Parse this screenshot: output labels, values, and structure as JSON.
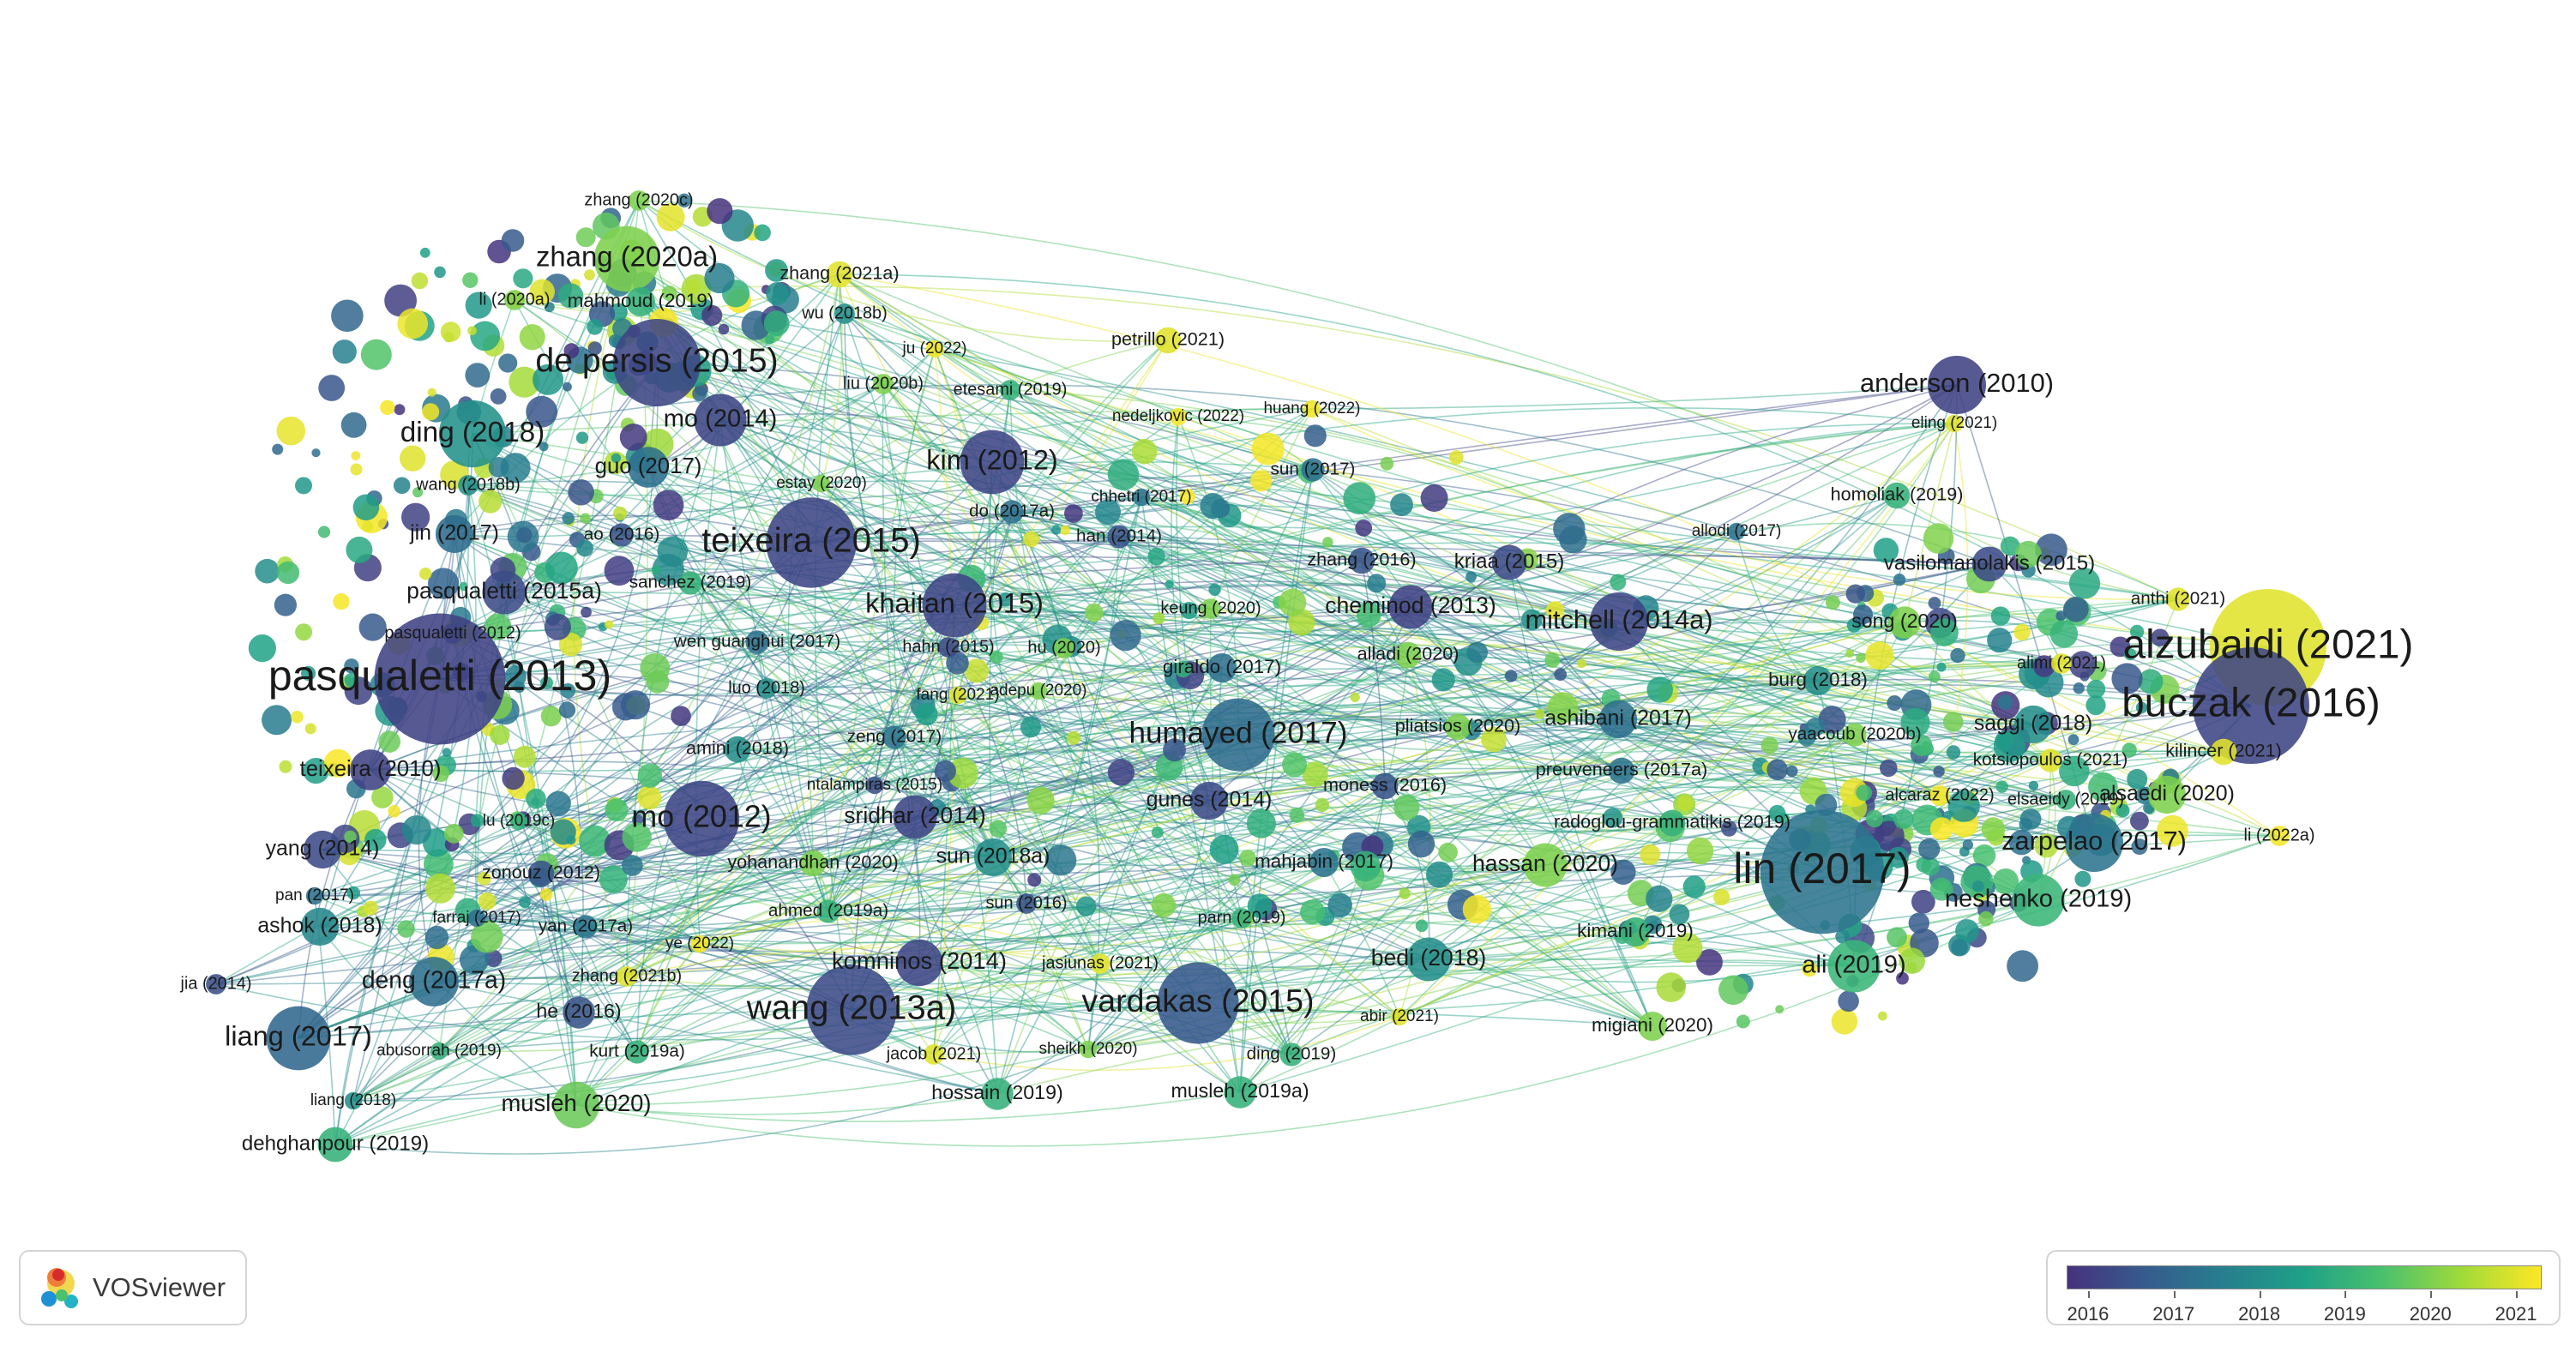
{
  "app": {
    "name": "VOSviewer"
  },
  "legend": {
    "ticks": [
      "2016",
      "2017",
      "2018",
      "2019",
      "2020",
      "2021"
    ],
    "start_year": 2015.75,
    "end_year": 2021.3
  },
  "chart_data": {
    "type": "network",
    "color_scale": [
      "#46327e",
      "#365c8d",
      "#277f8e",
      "#1fa187",
      "#4ac16d",
      "#a0da39",
      "#fde725"
    ],
    "nodes": [
      {
        "label": "pasqualetti (2013)",
        "year": 2016.1,
        "weight": 90
      },
      {
        "label": "lin (2017)",
        "year": 2017.3,
        "weight": 85
      },
      {
        "label": "alzubaidi (2021)",
        "year": 2021.0,
        "weight": 80
      },
      {
        "label": "buczak (2016)",
        "year": 2016.2,
        "weight": 80
      },
      {
        "label": "de persis (2015)",
        "year": 2016.2,
        "weight": 60
      },
      {
        "label": "teixeira (2015)",
        "year": 2016.2,
        "weight": 62
      },
      {
        "label": "wang (2013a)",
        "year": 2016.3,
        "weight": 62
      },
      {
        "label": "vardakas (2015)",
        "year": 2016.6,
        "weight": 56
      },
      {
        "label": "mo (2012)",
        "year": 2016.2,
        "weight": 52
      },
      {
        "label": "humayed (2017)",
        "year": 2017.1,
        "weight": 50
      },
      {
        "label": "zhang (2020a)",
        "year": 2020.0,
        "weight": 45
      },
      {
        "label": "ding (2018)",
        "year": 2018.1,
        "weight": 46
      },
      {
        "label": "kim (2012)",
        "year": 2016.2,
        "weight": 44
      },
      {
        "label": "khaitan (2015)",
        "year": 2016.2,
        "weight": 44
      },
      {
        "label": "liang (2017)",
        "year": 2017.0,
        "weight": 44
      },
      {
        "label": "anderson (2010)",
        "year": 2016.1,
        "weight": 40
      },
      {
        "label": "mitchell (2014a)",
        "year": 2016.2,
        "weight": 40
      },
      {
        "label": "zarpelao (2017)",
        "year": 2017.3,
        "weight": 40
      },
      {
        "label": "mo (2014)",
        "year": 2016.2,
        "weight": 36
      },
      {
        "label": "neshenko (2019)",
        "year": 2019.1,
        "weight": 36
      },
      {
        "label": "ali (2019)",
        "year": 2019.1,
        "weight": 36
      },
      {
        "label": "deng (2017a)",
        "year": 2017.2,
        "weight": 34
      },
      {
        "label": "musleh (2020)",
        "year": 2019.8,
        "weight": 32
      },
      {
        "label": "komninos (2014)",
        "year": 2016.2,
        "weight": 32
      },
      {
        "label": "bedi (2018)",
        "year": 2018.0,
        "weight": 30
      },
      {
        "label": "hassan (2020)",
        "year": 2020.0,
        "weight": 30
      },
      {
        "label": "pasqualetti (2015a)",
        "year": 2016.3,
        "weight": 30
      },
      {
        "label": "cheminod (2013)",
        "year": 2016.1,
        "weight": 30
      },
      {
        "label": "sridhar (2014)",
        "year": 2016.2,
        "weight": 30
      },
      {
        "label": "guo (2017)",
        "year": 2017.2,
        "weight": 28
      },
      {
        "label": "teixeira (2010)",
        "year": 2016.1,
        "weight": 28
      },
      {
        "label": "yang (2014)",
        "year": 2016.3,
        "weight": 26
      },
      {
        "label": "jin (2017)",
        "year": 2017.1,
        "weight": 26
      },
      {
        "label": "sun (2018a)",
        "year": 2018.0,
        "weight": 26
      },
      {
        "label": "gunes (2014)",
        "year": 2016.3,
        "weight": 26
      },
      {
        "label": "saggi (2018)",
        "year": 2018.0,
        "weight": 26
      },
      {
        "label": "ashok (2018)",
        "year": 2017.8,
        "weight": 26
      },
      {
        "label": "ashibani (2017)",
        "year": 2017.2,
        "weight": 26
      },
      {
        "label": "alsaedi (2020)",
        "year": 2020.0,
        "weight": 26
      },
      {
        "label": "kriaa (2015)",
        "year": 2016.3,
        "weight": 24
      },
      {
        "label": "vasilomanolakis (2015)",
        "year": 2016.3,
        "weight": 24
      },
      {
        "label": "dehghanpour (2019)",
        "year": 2019.0,
        "weight": 24
      },
      {
        "label": "song (2020)",
        "year": 2020.0,
        "weight": 22
      },
      {
        "label": "hossain (2019)",
        "year": 2019.0,
        "weight": 22
      },
      {
        "label": "musleh (2019a)",
        "year": 2019.0,
        "weight": 22
      },
      {
        "label": "he (2016)",
        "year": 2016.5,
        "weight": 22
      },
      {
        "label": "migiani (2020)",
        "year": 2020.0,
        "weight": 20
      },
      {
        "label": "kimani (2019)",
        "year": 2019.0,
        "weight": 20
      },
      {
        "label": "burg (2018)",
        "year": 2018.0,
        "weight": 20
      },
      {
        "label": "giraldo (2017)",
        "year": 2017.2,
        "weight": 20
      },
      {
        "label": "mahjabin (2017)",
        "year": 2017.3,
        "weight": 20
      },
      {
        "label": "mahmoud (2019)",
        "year": 2019.0,
        "weight": 20
      },
      {
        "label": "homoliak (2019)",
        "year": 2019.0,
        "weight": 18
      },
      {
        "label": "zhang (2021a)",
        "year": 2021.0,
        "weight": 18
      },
      {
        "label": "petrillo (2021)",
        "year": 2021.0,
        "weight": 18
      },
      {
        "label": "zhang (2016)",
        "year": 2016.5,
        "weight": 18
      },
      {
        "label": "moness (2016)",
        "year": 2016.5,
        "weight": 18
      },
      {
        "label": "pliatsios (2020)",
        "year": 2020.0,
        "weight": 18
      },
      {
        "label": "alladi (2020)",
        "year": 2020.0,
        "weight": 18
      },
      {
        "label": "amini (2018)",
        "year": 2018.0,
        "weight": 18
      },
      {
        "label": "zonouz (2012)",
        "year": 2016.5,
        "weight": 18
      },
      {
        "label": "kilincer (2021)",
        "year": 2021.0,
        "weight": 18
      },
      {
        "label": "preuveneers (2017a)",
        "year": 2017.3,
        "weight": 18
      },
      {
        "label": "radoglou-grammatikis (2019)",
        "year": 2019.0,
        "weight": 18
      },
      {
        "label": "yohanandhan (2020)",
        "year": 2020.0,
        "weight": 18
      },
      {
        "label": "ahmed (2019a)",
        "year": 2019.0,
        "weight": 16
      },
      {
        "label": "yan (2017a)",
        "year": 2017.3,
        "weight": 16
      },
      {
        "label": "sanchez (2019)",
        "year": 2019.0,
        "weight": 16
      },
      {
        "label": "wen guanghui (2017)",
        "year": 2017.2,
        "weight": 16
      },
      {
        "label": "ao (2016)",
        "year": 2016.5,
        "weight": 16
      },
      {
        "label": "zeng (2017)",
        "year": 2017.3,
        "weight": 16
      },
      {
        "label": "kotsiopoulos (2021)",
        "year": 2021.0,
        "weight": 16
      },
      {
        "label": "yaacoub (2020b)",
        "year": 2020.0,
        "weight": 16
      },
      {
        "label": "anthi (2021)",
        "year": 2021.0,
        "weight": 16
      },
      {
        "label": "han (2014)",
        "year": 2016.5,
        "weight": 16
      },
      {
        "label": "sun (2017)",
        "year": 2017.2,
        "weight": 16
      },
      {
        "label": "do (2017a)",
        "year": 2017.2,
        "weight": 16
      },
      {
        "label": "ding (2019)",
        "year": 2019.0,
        "weight": 16
      },
      {
        "label": "kurt (2019a)",
        "year": 2019.0,
        "weight": 16
      },
      {
        "label": "zhang (2020c)",
        "year": 2020.0,
        "weight": 14
      },
      {
        "label": "li (2020a)",
        "year": 2020.0,
        "weight": 14
      },
      {
        "label": "wu (2018b)",
        "year": 2018.0,
        "weight": 14
      },
      {
        "label": "liu (2020b)",
        "year": 2020.0,
        "weight": 14
      },
      {
        "label": "etesami (2019)",
        "year": 2019.0,
        "weight": 14
      },
      {
        "label": "ju (2022)",
        "year": 2021.2,
        "weight": 12
      },
      {
        "label": "nedeljkovic (2022)",
        "year": 2021.2,
        "weight": 12
      },
      {
        "label": "huang (2022)",
        "year": 2021.2,
        "weight": 12
      },
      {
        "label": "eling (2021)",
        "year": 2021.0,
        "weight": 12
      },
      {
        "label": "wang (2018b)",
        "year": 2018.0,
        "weight": 14
      },
      {
        "label": "estay (2020)",
        "year": 2020.0,
        "weight": 12
      },
      {
        "label": "chhetri (2017)",
        "year": 2017.3,
        "weight": 12
      },
      {
        "label": "allodi (2017)",
        "year": 2017.3,
        "weight": 12
      },
      {
        "label": "pasqualetti (2012)",
        "year": 2016.2,
        "weight": 14
      },
      {
        "label": "keung (2020)",
        "year": 2020.0,
        "weight": 14
      },
      {
        "label": "hahn (2015)",
        "year": 2016.3,
        "weight": 14
      },
      {
        "label": "hu (2020)",
        "year": 2020.0,
        "weight": 14
      },
      {
        "label": "luo (2018)",
        "year": 2018.0,
        "weight": 14
      },
      {
        "label": "fang (2021)",
        "year": 2021.0,
        "weight": 12
      },
      {
        "label": "adepu (2020)",
        "year": 2020.0,
        "weight": 12
      },
      {
        "label": "alimi (2021)",
        "year": 2021.0,
        "weight": 14
      },
      {
        "label": "alcaraz (2022)",
        "year": 2021.2,
        "weight": 14
      },
      {
        "label": "elsaeidy (2019)",
        "year": 2019.0,
        "weight": 14
      },
      {
        "label": "li (2022a)",
        "year": 2021.2,
        "weight": 14
      },
      {
        "label": "ntalampiras (2015)",
        "year": 2016.4,
        "weight": 12
      },
      {
        "label": "lu (2019c)",
        "year": 2019.0,
        "weight": 12
      },
      {
        "label": "pan (2017)",
        "year": 2017.2,
        "weight": 12
      },
      {
        "label": "farraj (2017)",
        "year": 2017.2,
        "weight": 12
      },
      {
        "label": "sun (2016)",
        "year": 2016.5,
        "weight": 14
      },
      {
        "label": "parn (2019)",
        "year": 2019.0,
        "weight": 14
      },
      {
        "label": "ye (2022)",
        "year": 2021.2,
        "weight": 12
      },
      {
        "label": "zhang (2021b)",
        "year": 2021.0,
        "weight": 14
      },
      {
        "label": "jia (2014)",
        "year": 2016.4,
        "weight": 14
      },
      {
        "label": "jasiunas (2021)",
        "year": 2021.0,
        "weight": 14
      },
      {
        "label": "abir (2021)",
        "year": 2021.0,
        "weight": 12
      },
      {
        "label": "abusorrah (2019)",
        "year": 2019.0,
        "weight": 12
      },
      {
        "label": "jacob (2021)",
        "year": 2021.0,
        "weight": 14
      },
      {
        "label": "sheikh (2020)",
        "year": 2020.0,
        "weight": 12
      },
      {
        "label": "liang (2018)",
        "year": 2018.0,
        "weight": 12
      }
    ]
  }
}
